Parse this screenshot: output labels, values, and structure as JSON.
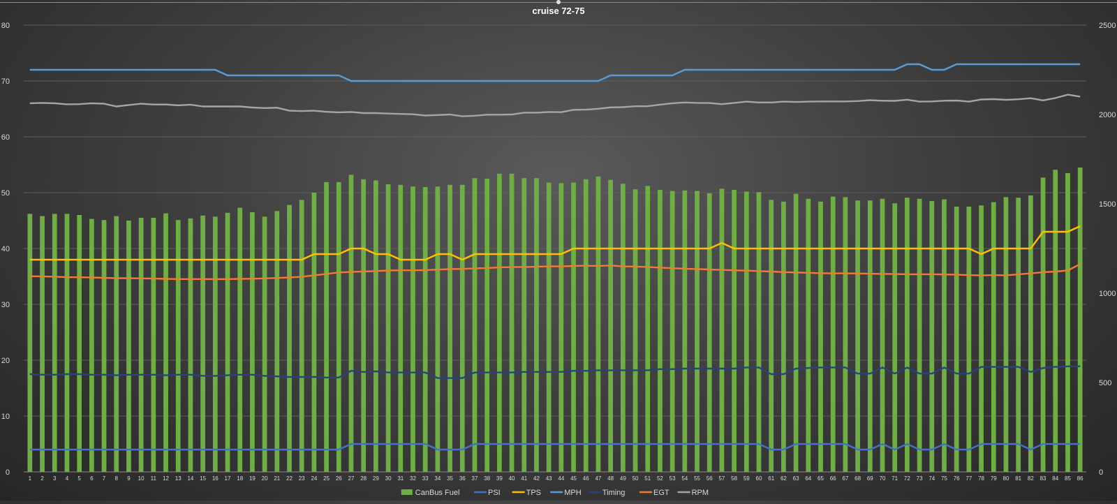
{
  "chart_data": {
    "type": "bar+line",
    "title": "cruise 72-75",
    "categories": [
      "1",
      "2",
      "3",
      "4",
      "5",
      "6",
      "7",
      "8",
      "9",
      "10",
      "11",
      "12",
      "13",
      "14",
      "15",
      "16",
      "17",
      "18",
      "19",
      "20",
      "21",
      "22",
      "23",
      "24",
      "25",
      "26",
      "27",
      "28",
      "29",
      "30",
      "31",
      "32",
      "33",
      "34",
      "35",
      "36",
      "37",
      "38",
      "39",
      "40",
      "41",
      "42",
      "43",
      "44",
      "45",
      "46",
      "47",
      "48",
      "49",
      "50",
      "51",
      "52",
      "53",
      "54",
      "55",
      "56",
      "57",
      "58",
      "59",
      "60",
      "61",
      "62",
      "63",
      "64",
      "65",
      "66",
      "67",
      "68",
      "69",
      "70",
      "71",
      "72",
      "73",
      "74",
      "75",
      "76",
      "77",
      "78",
      "79",
      "80",
      "81",
      "82",
      "83",
      "84",
      "85",
      "86"
    ],
    "y_left": {
      "range": [
        0,
        80
      ],
      "ticks": [
        "0",
        "10",
        "20",
        "30",
        "40",
        "50",
        "60",
        "70",
        "80"
      ]
    },
    "y_right": {
      "range": [
        0,
        2500
      ],
      "ticks": [
        "0",
        "500",
        "1000",
        "1500",
        "2000",
        "2500"
      ]
    },
    "grid": true,
    "legend_position": "bottom",
    "series": [
      {
        "name": "CanBus Fuel",
        "type": "bar",
        "axis": "left",
        "color": "#70ad47",
        "values": [
          46.2,
          45.8,
          46.2,
          46.2,
          46.0,
          45.3,
          45.1,
          45.8,
          45.0,
          45.5,
          45.5,
          46.3,
          45.1,
          45.4,
          45.9,
          45.7,
          46.4,
          47.3,
          46.5,
          45.7,
          46.7,
          47.8,
          48.7,
          50.0,
          51.9,
          51.9,
          53.2,
          52.4,
          52.2,
          51.5,
          51.4,
          51.1,
          51.0,
          51.1,
          51.4,
          51.4,
          52.6,
          52.5,
          53.4,
          53.4,
          52.6,
          52.6,
          51.8,
          51.7,
          51.8,
          52.4,
          52.9,
          52.3,
          51.6,
          50.6,
          51.2,
          50.5,
          50.3,
          50.4,
          50.3,
          49.9,
          50.7,
          50.5,
          50.2,
          50.1,
          48.7,
          48.4,
          49.8,
          48.9,
          48.4,
          49.3,
          49.2,
          48.6,
          48.6,
          48.9,
          48.1,
          49.1,
          48.9,
          48.5,
          48.8,
          47.5,
          47.5,
          47.7,
          48.3,
          49.2,
          49.1,
          49.5,
          52.7,
          54.1,
          53.5,
          54.5
        ]
      },
      {
        "name": "PSI",
        "type": "line",
        "axis": "left",
        "color": "#4472c4",
        "values": [
          4,
          4,
          4,
          4,
          4,
          4,
          4,
          4,
          4,
          4,
          4,
          4,
          4,
          4,
          4,
          4,
          4,
          4,
          4,
          4,
          4,
          4,
          4,
          4,
          4,
          4,
          5,
          5,
          5,
          5,
          5,
          5,
          5,
          4,
          4,
          4,
          5,
          5,
          5,
          5,
          5,
          5,
          5,
          5,
          5,
          5,
          5,
          5,
          5,
          5,
          5,
          5,
          5,
          5,
          5,
          5,
          5,
          5,
          5,
          5,
          4,
          4,
          5,
          5,
          5,
          5,
          5,
          4,
          4,
          5,
          4,
          5,
          4,
          4,
          5,
          4,
          4,
          5,
          5,
          5,
          5,
          4,
          5,
          5,
          5,
          5
        ]
      },
      {
        "name": "TPS",
        "type": "line",
        "axis": "left",
        "color": "#ffc000",
        "values": [
          38,
          38,
          38,
          38,
          38,
          38,
          38,
          38,
          38,
          38,
          38,
          38,
          38,
          38,
          38,
          38,
          38,
          38,
          38,
          38,
          38,
          38,
          38,
          39,
          39,
          39,
          40,
          40,
          39,
          39,
          38,
          38,
          38,
          39,
          39,
          38,
          39,
          39,
          39,
          39,
          39,
          39,
          39,
          39,
          40,
          40,
          40,
          40,
          40,
          40,
          40,
          40,
          40,
          40,
          40,
          40,
          41,
          40,
          40,
          40,
          40,
          40,
          40,
          40,
          40,
          40,
          40,
          40,
          40,
          40,
          40,
          40,
          40,
          40,
          40,
          40,
          40,
          39,
          40,
          40,
          40,
          40,
          43,
          43,
          43,
          44
        ]
      },
      {
        "name": "MPH",
        "type": "line",
        "axis": "left",
        "color": "#5b9bd5",
        "values": [
          72,
          72,
          72,
          72,
          72,
          72,
          72,
          72,
          72,
          72,
          72,
          72,
          72,
          72,
          72,
          72,
          71,
          71,
          71,
          71,
          71,
          71,
          71,
          71,
          71,
          71,
          70,
          70,
          70,
          70,
          70,
          70,
          70,
          70,
          70,
          70,
          70,
          70,
          70,
          70,
          70,
          70,
          70,
          70,
          70,
          70,
          70,
          71,
          71,
          71,
          71,
          71,
          71,
          72,
          72,
          72,
          72,
          72,
          72,
          72,
          72,
          72,
          72,
          72,
          72,
          72,
          72,
          72,
          72,
          72,
          72,
          73,
          73,
          72,
          72,
          73,
          73,
          73,
          73,
          73,
          73,
          73,
          73,
          73,
          73,
          73
        ]
      },
      {
        "name": "Timing",
        "type": "line",
        "axis": "left",
        "color": "#264478",
        "values": [
          17.5,
          17.4,
          17.4,
          17.5,
          17.5,
          17.4,
          17.4,
          17.3,
          17.4,
          17.4,
          17.4,
          17.3,
          17.4,
          17.4,
          17.2,
          17.2,
          17.3,
          17.4,
          17.4,
          17.2,
          17.1,
          17.0,
          17.0,
          17.0,
          16.9,
          16.9,
          18.1,
          17.9,
          18.0,
          17.8,
          17.8,
          17.8,
          17.8,
          16.8,
          16.8,
          16.8,
          17.8,
          17.8,
          17.8,
          17.8,
          17.9,
          17.9,
          17.9,
          17.9,
          18.1,
          18.1,
          18.2,
          18.2,
          18.2,
          18.2,
          18.2,
          18.4,
          18.4,
          18.5,
          18.5,
          18.5,
          18.5,
          18.5,
          18.7,
          18.7,
          17.5,
          17.5,
          18.5,
          18.6,
          18.7,
          18.7,
          18.7,
          17.6,
          17.6,
          18.7,
          17.6,
          18.7,
          17.6,
          17.6,
          18.7,
          17.6,
          17.6,
          18.8,
          18.8,
          18.8,
          18.8,
          17.9,
          18.6,
          18.8,
          18.9,
          18.9
        ]
      },
      {
        "name": "EGT",
        "type": "line",
        "axis": "right",
        "color": "#ed7d31",
        "values": [
          1095,
          1094,
          1092,
          1090,
          1089,
          1088,
          1086,
          1084,
          1084,
          1083,
          1082,
          1080,
          1079,
          1079,
          1079,
          1078,
          1079,
          1080,
          1081,
          1083,
          1085,
          1088,
          1092,
          1100,
          1108,
          1116,
          1119,
          1121,
          1124,
          1127,
          1128,
          1128,
          1129,
          1132,
          1135,
          1136,
          1139,
          1141,
          1144,
          1146,
          1147,
          1148,
          1150,
          1150,
          1152,
          1154,
          1152,
          1155,
          1150,
          1149,
          1147,
          1143,
          1140,
          1137,
          1135,
          1133,
          1130,
          1128,
          1126,
          1124,
          1121,
          1118,
          1116,
          1114,
          1112,
          1111,
          1111,
          1110,
          1109,
          1108,
          1107,
          1106,
          1106,
          1106,
          1105,
          1103,
          1101,
          1100,
          1101,
          1100,
          1105,
          1111,
          1117,
          1121,
          1127,
          1163
        ]
      },
      {
        "name": "RPM",
        "type": "line",
        "axis": "right",
        "color": "#a5a5a5",
        "values": [
          2063,
          2065,
          2063,
          2057,
          2058,
          2063,
          2060,
          2045,
          2053,
          2060,
          2056,
          2056,
          2051,
          2055,
          2045,
          2045,
          2045,
          2045,
          2039,
          2036,
          2038,
          2021,
          2019,
          2021,
          2015,
          2012,
          2014,
          2008,
          2008,
          2005,
          2003,
          2001,
          1994,
          1997,
          2000,
          1990,
          1993,
          1999,
          1999,
          2000,
          2010,
          2010,
          2014,
          2013,
          2026,
          2027,
          2032,
          2040,
          2041,
          2046,
          2046,
          2055,
          2063,
          2067,
          2065,
          2064,
          2058,
          2065,
          2072,
          2067,
          2067,
          2072,
          2070,
          2072,
          2073,
          2073,
          2073,
          2075,
          2080,
          2077,
          2076,
          2083,
          2072,
          2073,
          2077,
          2078,
          2072,
          2084,
          2086,
          2082,
          2085,
          2091,
          2079,
          2092,
          2111,
          2100
        ]
      }
    ]
  }
}
